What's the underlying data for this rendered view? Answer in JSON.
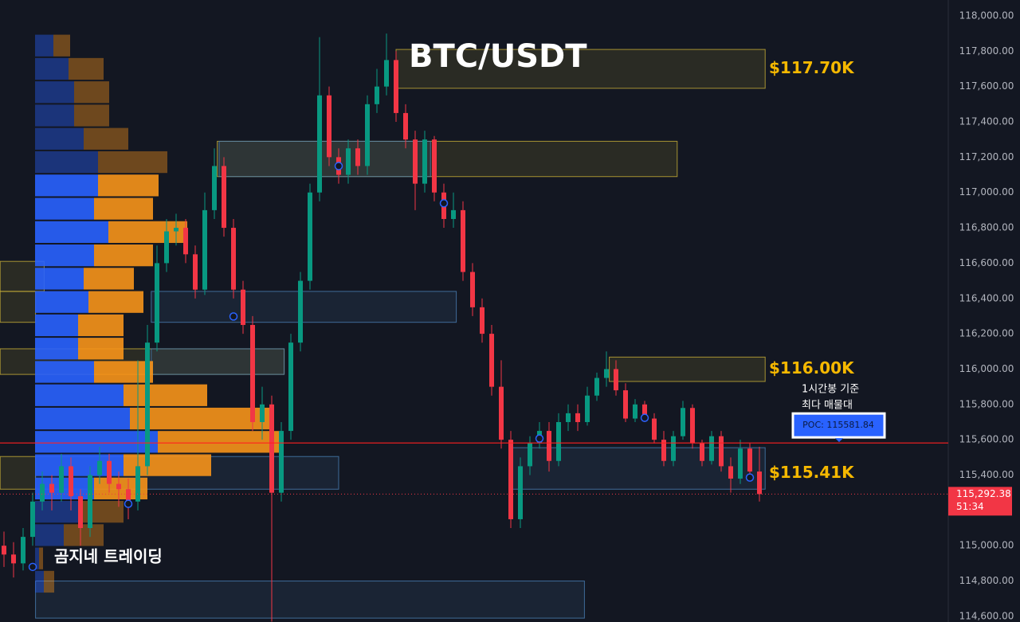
{
  "chart_data": {
    "type": "candlestick",
    "title": "BTC/USDT",
    "watermark": "곰지네 트레이딩",
    "annotation": [
      "1시간봉 기준",
      "최다 매물대"
    ],
    "ylim": [
      114568,
      118090
    ],
    "yticks": [
      {
        "value": 114600,
        "label": "114,600.00"
      },
      {
        "value": 114800,
        "label": "114,800.00"
      },
      {
        "value": 115000,
        "label": "115,000.00"
      },
      {
        "value": 115400,
        "label": "115,400.00"
      },
      {
        "value": 115600,
        "label": "115,600.00"
      },
      {
        "value": 115800,
        "label": "115,800.00"
      },
      {
        "value": 116000,
        "label": "116,000.00"
      },
      {
        "value": 116200,
        "label": "116,200.00"
      },
      {
        "value": 116400,
        "label": "116,400.00"
      },
      {
        "value": 116600,
        "label": "116,600.00"
      },
      {
        "value": 116800,
        "label": "116,800.00"
      },
      {
        "value": 117000,
        "label": "117,000.00"
      },
      {
        "value": 117200,
        "label": "117,200.00"
      },
      {
        "value": 117400,
        "label": "117,400.00"
      },
      {
        "value": 117600,
        "label": "117,600.00"
      },
      {
        "value": 117800,
        "label": "117,800.00"
      },
      {
        "value": 118000,
        "label": "118,000.00"
      }
    ],
    "up_color": "#089981",
    "down_color": "#f23645",
    "candles": [
      [
        115000,
        115080,
        114880,
        114950
      ],
      [
        114950,
        115020,
        114820,
        114900
      ],
      [
        114900,
        115100,
        114860,
        115050
      ],
      [
        115050,
        115300,
        115000,
        115250
      ],
      [
        115250,
        115420,
        115200,
        115350
      ],
      [
        115350,
        115400,
        115200,
        115300
      ],
      [
        115300,
        115520,
        115250,
        115450
      ],
      [
        115450,
        115500,
        115200,
        115280
      ],
      [
        115280,
        115320,
        115000,
        115100
      ],
      [
        115100,
        115450,
        115050,
        115400
      ],
      [
        115400,
        115560,
        115350,
        115480
      ],
      [
        115480,
        115520,
        115300,
        115350
      ],
      [
        115350,
        115420,
        115220,
        115320
      ],
      [
        115320,
        115380,
        115150,
        115250
      ],
      [
        115250,
        116050,
        115200,
        115450
      ],
      [
        115450,
        116250,
        115400,
        116150
      ],
      [
        116150,
        116700,
        116100,
        116600
      ],
      [
        116600,
        116850,
        116550,
        116780
      ],
      [
        116780,
        116880,
        116700,
        116800
      ],
      [
        116800,
        116850,
        116600,
        116650
      ],
      [
        116650,
        116700,
        116400,
        116450
      ],
      [
        116450,
        117000,
        116420,
        116900
      ],
      [
        116900,
        117250,
        116850,
        117150
      ],
      [
        117150,
        117200,
        116750,
        116800
      ],
      [
        116800,
        116850,
        116400,
        116450
      ],
      [
        116450,
        116500,
        116200,
        116250
      ],
      [
        116250,
        116300,
        115650,
        115700
      ],
      [
        115700,
        115900,
        115600,
        115800
      ],
      [
        115800,
        115850,
        114570,
        115300
      ],
      [
        115300,
        115700,
        115250,
        115650
      ],
      [
        115650,
        116200,
        115600,
        116150
      ],
      [
        116150,
        116550,
        116100,
        116500
      ],
      [
        116500,
        117050,
        116450,
        117000
      ],
      [
        117000,
        117880,
        116950,
        117550
      ],
      [
        117550,
        117600,
        117150,
        117200
      ],
      [
        117200,
        117250,
        117050,
        117100
      ],
      [
        117100,
        117300,
        117050,
        117250
      ],
      [
        117250,
        117300,
        117100,
        117150
      ],
      [
        117150,
        117550,
        117100,
        117500
      ],
      [
        117500,
        117700,
        117450,
        117600
      ],
      [
        117600,
        117900,
        117550,
        117750
      ],
      [
        117750,
        117800,
        117400,
        117450
      ],
      [
        117450,
        117500,
        117250,
        117300
      ],
      [
        117300,
        117350,
        116900,
        117050
      ],
      [
        117050,
        117350,
        117000,
        117300
      ],
      [
        117300,
        117320,
        116950,
        117000
      ],
      [
        117000,
        117050,
        116800,
        116850
      ],
      [
        116850,
        117000,
        116800,
        116900
      ],
      [
        116900,
        116950,
        116500,
        116550
      ],
      [
        116550,
        116600,
        116300,
        116350
      ],
      [
        116350,
        116400,
        116150,
        116200
      ],
      [
        116200,
        116250,
        115850,
        115900
      ],
      [
        115900,
        116050,
        115550,
        115600
      ],
      [
        115600,
        115650,
        115100,
        115150
      ],
      [
        115150,
        115500,
        115100,
        115450
      ],
      [
        115450,
        115620,
        115400,
        115580
      ],
      [
        115580,
        115700,
        115550,
        115650
      ],
      [
        115650,
        115700,
        115420,
        115480
      ],
      [
        115480,
        115750,
        115450,
        115700
      ],
      [
        115700,
        115800,
        115650,
        115750
      ],
      [
        115750,
        115800,
        115650,
        115700
      ],
      [
        115700,
        115900,
        115680,
        115850
      ],
      [
        115850,
        115980,
        115820,
        115950
      ],
      [
        115950,
        116100,
        115900,
        116000
      ],
      [
        116000,
        116050,
        115850,
        115880
      ],
      [
        115880,
        115920,
        115700,
        115720
      ],
      [
        115720,
        115830,
        115700,
        115800
      ],
      [
        115800,
        115820,
        115700,
        115720
      ],
      [
        115720,
        115750,
        115580,
        115600
      ],
      [
        115600,
        115650,
        115450,
        115480
      ],
      [
        115480,
        115650,
        115450,
        115620
      ],
      [
        115620,
        115820,
        115600,
        115780
      ],
      [
        115780,
        115800,
        115550,
        115580
      ],
      [
        115580,
        115600,
        115450,
        115480
      ],
      [
        115480,
        115650,
        115460,
        115620
      ],
      [
        115620,
        115650,
        115420,
        115450
      ],
      [
        115450,
        115500,
        115300,
        115380
      ],
      [
        115380,
        115600,
        115350,
        115550
      ],
      [
        115550,
        115580,
        115380,
        115420
      ],
      [
        115420,
        115560,
        115250,
        115292.38
      ]
    ],
    "volume_profile": {
      "bins": [
        114730,
        114862,
        114994,
        115126,
        115258,
        115390,
        115522,
        115654,
        115786,
        115918,
        116050,
        116182,
        116314,
        116446,
        116578,
        116710,
        116842,
        116974,
        117106,
        117238,
        117370,
        117502,
        117634,
        117766,
        117898
      ],
      "buy": [
        11,
        5,
        36,
        59,
        74,
        111,
        154,
        119,
        111,
        74,
        54,
        54,
        67,
        61,
        74,
        92,
        74,
        79,
        79,
        61,
        49,
        49,
        42,
        23
      ],
      "sell": [
        13,
        5,
        50,
        52,
        67,
        110,
        152,
        177,
        105,
        74,
        57,
        57,
        69,
        63,
        74,
        99,
        74,
        76,
        87,
        56,
        44,
        44,
        44,
        21
      ],
      "buy_color": "#2962ff",
      "sell_color": "#f7931a",
      "value_area": [
        115250,
        117110
      ]
    },
    "zones": [
      {
        "top": 117810,
        "bottom": 117590,
        "start": 41,
        "end": 79.6,
        "color": "#c9b037",
        "label": {
          "value": 117700,
          "label": "$117.70K"
        }
      },
      {
        "top": 117290,
        "bottom": 117090,
        "start": 22.3,
        "end": 70.4,
        "color": "#c9b037"
      },
      {
        "top": 117290,
        "bottom": 117090,
        "start": 22.5,
        "end": 44.6,
        "color": "#4a7fb5"
      },
      {
        "top": 116068,
        "bottom": 115930,
        "start": 63.3,
        "end": 79.6,
        "color": "#c9b037",
        "label": {
          "value": 116000,
          "label": "$116.00K"
        }
      },
      {
        "top": 116440,
        "bottom": 116265,
        "start": 15.4,
        "end": 47.3,
        "color": "#4a7fb5"
      },
      {
        "top": 116440,
        "bottom": 116265,
        "start": -0.4,
        "end": 3.3,
        "color": "#c9b037"
      },
      {
        "top": 116610,
        "bottom": 116440,
        "start": -0.4,
        "end": 4.2,
        "color": "#c9b037"
      },
      {
        "top": 116115,
        "bottom": 115970,
        "start": -0.4,
        "end": 29.3,
        "color": "#c9b037"
      },
      {
        "top": 116115,
        "bottom": 115970,
        "start": 15.4,
        "end": 29.3,
        "color": "#4a7fb5"
      },
      {
        "top": 115505,
        "bottom": 115320,
        "start": -0.4,
        "end": 3.3,
        "color": "#c9b037"
      },
      {
        "top": 115505,
        "bottom": 115320,
        "start": 3.3,
        "end": 35,
        "color": "#4a7fb5"
      },
      {
        "top": 115555,
        "bottom": 115320,
        "start": 52.9,
        "end": 79.6,
        "color": "#4a7fb5",
        "label": {
          "value": 115410,
          "label": "$115.41K"
        }
      },
      {
        "top": 114800,
        "bottom": 114590,
        "start": 3.3,
        "end": 60.7,
        "color": "#4a7fb5"
      }
    ],
    "poc": {
      "value": 115581.84,
      "label": "POC: 115581.84"
    },
    "poc_color": "#ff2020",
    "last_price": {
      "value": 115292.38,
      "label": "115,292.38"
    },
    "countdown": "51:34",
    "markers": [
      {
        "index": 3,
        "price": 114880
      },
      {
        "index": 13,
        "price": 115237
      },
      {
        "index": 24,
        "price": 116298
      },
      {
        "index": 35,
        "price": 117150
      },
      {
        "index": 46,
        "price": 116939
      },
      {
        "index": 56,
        "price": 115607
      },
      {
        "index": 67,
        "price": 115724
      },
      {
        "index": 78,
        "price": 115386
      }
    ]
  }
}
